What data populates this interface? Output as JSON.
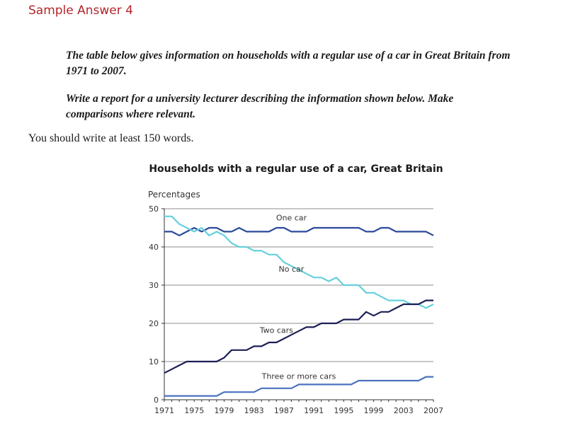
{
  "heading": "Sample Answer 4",
  "task": {
    "line1": "The table below gives information on households with a regular use of a car in Great Britain from",
    "line2": "1971 to 2007.",
    "line3": "Write a report for a university lecturer describing the information shown below. Make",
    "line4": "comparisons where relevant."
  },
  "instruction": "You should write at least 150 words.",
  "chart_data": {
    "type": "line",
    "title": "Households with a regular use of a car, Great Britain",
    "ylabel": "Percentages",
    "xlabel": "",
    "xlim": [
      1971,
      2007
    ],
    "ylim": [
      0,
      50
    ],
    "yticks": [
      0,
      10,
      20,
      30,
      40,
      50
    ],
    "xticks": [
      1971,
      1975,
      1979,
      1983,
      1987,
      1991,
      1995,
      1999,
      2003,
      2007
    ],
    "grid": true,
    "x": [
      1971,
      1972,
      1973,
      1974,
      1975,
      1976,
      1977,
      1978,
      1979,
      1980,
      1981,
      1982,
      1983,
      1984,
      1985,
      1986,
      1987,
      1988,
      1989,
      1990,
      1991,
      1992,
      1993,
      1994,
      1995,
      1996,
      1997,
      1998,
      1999,
      2000,
      2001,
      2002,
      2003,
      2004,
      2005,
      2006,
      2007
    ],
    "series": [
      {
        "name": "One car",
        "color": "#2b4a9a",
        "values": [
          44,
          44,
          43,
          44,
          45,
          44,
          45,
          45,
          44,
          44,
          45,
          44,
          44,
          44,
          44,
          45,
          45,
          44,
          44,
          44,
          45,
          45,
          45,
          45,
          45,
          45,
          45,
          44,
          44,
          45,
          45,
          44,
          44,
          44,
          44,
          44,
          43
        ]
      },
      {
        "name": "No car",
        "color": "#66d0dd",
        "values": [
          48,
          48,
          46,
          45,
          44,
          45,
          43,
          44,
          43,
          41,
          40,
          40,
          39,
          39,
          38,
          38,
          36,
          35,
          34,
          33,
          32,
          32,
          31,
          32,
          30,
          30,
          30,
          28,
          28,
          27,
          26,
          26,
          26,
          25,
          25,
          24,
          25
        ]
      },
      {
        "name": "Two cars",
        "color": "#1c1f55",
        "values": [
          7,
          8,
          9,
          10,
          10,
          10,
          10,
          10,
          11,
          13,
          13,
          13,
          14,
          14,
          15,
          15,
          16,
          17,
          18,
          19,
          19,
          20,
          20,
          20,
          21,
          21,
          21,
          23,
          22,
          23,
          23,
          24,
          25,
          25,
          25,
          26,
          26
        ]
      },
      {
        "name": "Three or more cars",
        "color": "#4a72bf",
        "values": [
          1,
          1,
          1,
          1,
          1,
          1,
          1,
          1,
          2,
          2,
          2,
          2,
          2,
          3,
          3,
          3,
          3,
          3,
          4,
          4,
          4,
          4,
          4,
          4,
          4,
          4,
          5,
          5,
          5,
          5,
          5,
          5,
          5,
          5,
          5,
          6,
          6
        ]
      }
    ]
  }
}
